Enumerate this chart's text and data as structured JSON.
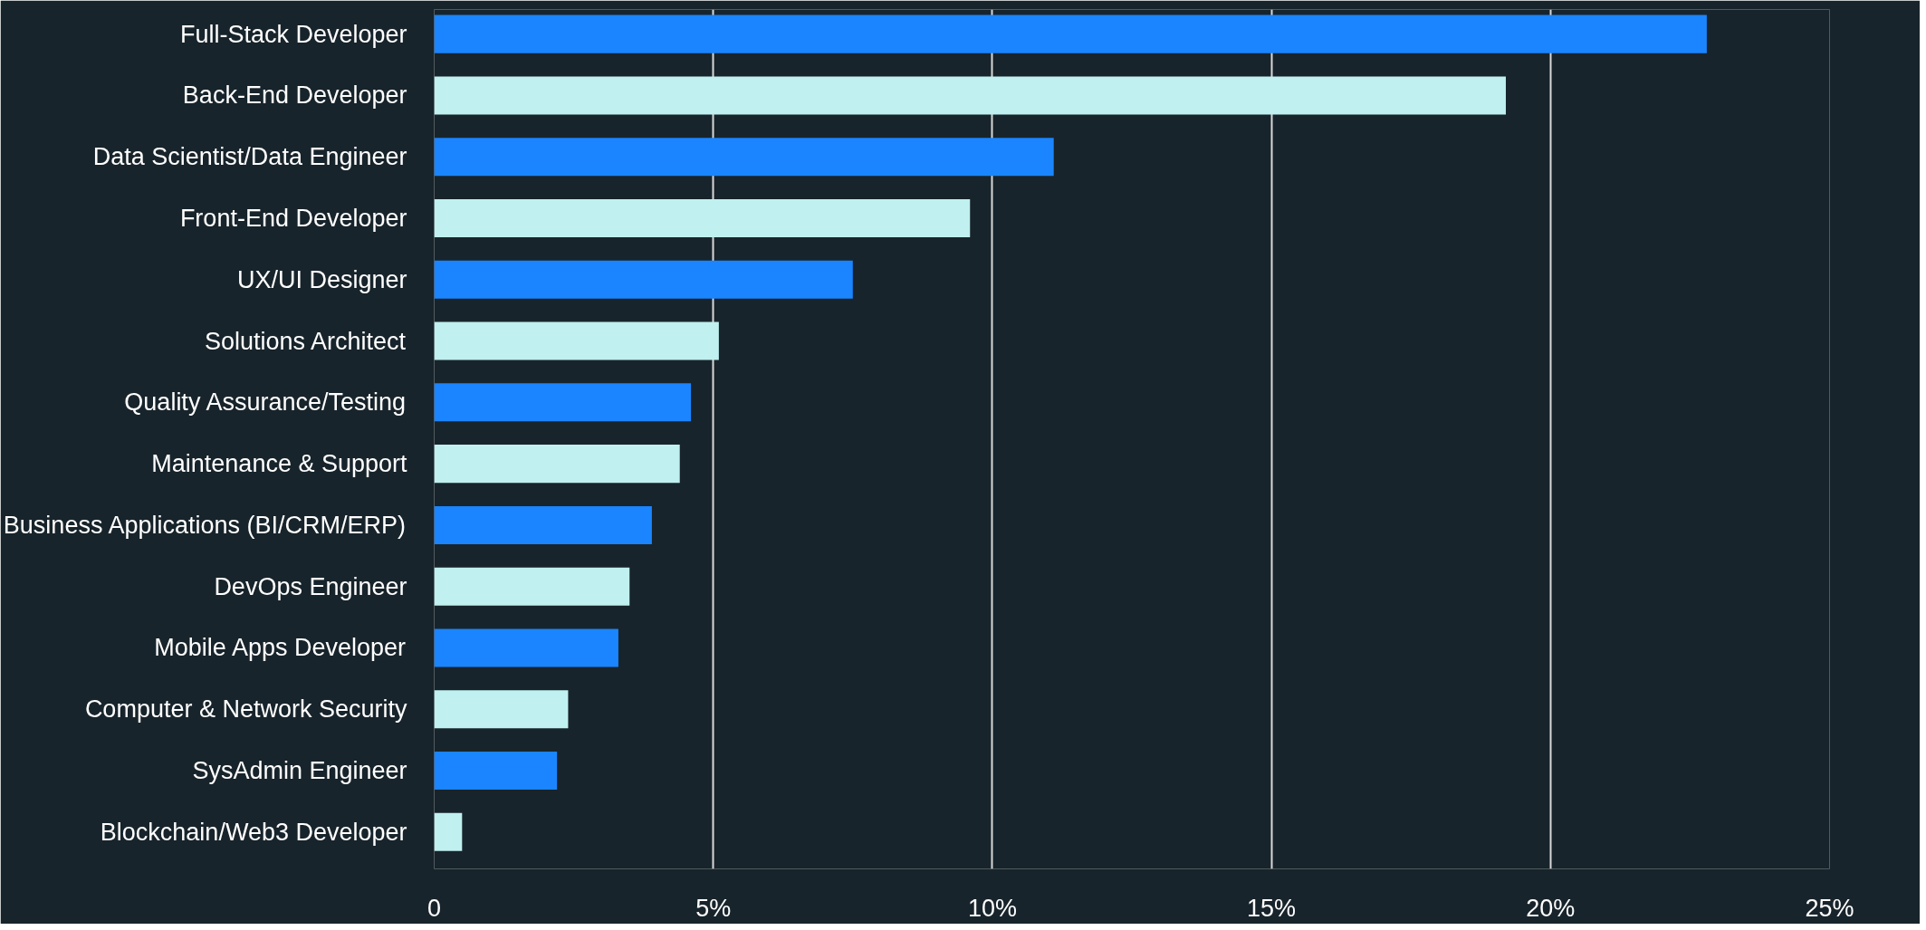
{
  "chart_data": {
    "type": "bar",
    "orientation": "horizontal",
    "categories": [
      "Full-Stack Developer",
      "Back-End Developer",
      "Data Scientist/Data Engineer",
      "Front-End Developer",
      "UX/UI Designer",
      "Solutions Architect",
      "Quality Assurance/Testing",
      "Maintenance & Support",
      "Business Applications (BI/CRM/ERP)",
      "DevOps Engineer",
      "Mobile Apps Developer",
      "Computer & Network Security",
      "SysAdmin Engineer",
      "Blockchain/Web3 Developer"
    ],
    "values": [
      22.8,
      19.2,
      11.1,
      9.6,
      7.5,
      5.1,
      4.6,
      4.4,
      3.9,
      3.5,
      3.3,
      2.4,
      2.2,
      0.5
    ],
    "colors": [
      "#1a85ff",
      "#c0f0f0",
      "#1a85ff",
      "#c0f0f0",
      "#1a85ff",
      "#c0f0f0",
      "#1a85ff",
      "#c0f0f0",
      "#1a85ff",
      "#c0f0f0",
      "#1a85ff",
      "#c0f0f0",
      "#1a85ff",
      "#c0f0f0"
    ],
    "xlim": [
      0,
      25
    ],
    "xticks": [
      0,
      {
        "value": 5,
        "label": "5%"
      },
      {
        "value": 10,
        "label": "10%"
      },
      {
        "value": 15,
        "label": "15%"
      },
      {
        "value": 20,
        "label": "20%"
      },
      {
        "value": 25,
        "label": "25%"
      }
    ],
    "grid": "x"
  }
}
